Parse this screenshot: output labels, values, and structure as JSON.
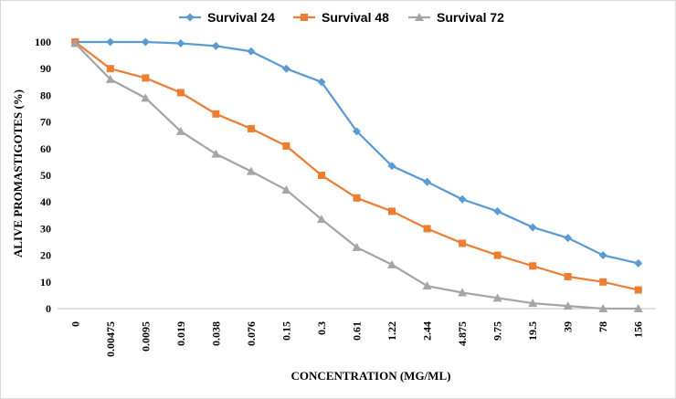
{
  "chart_data": {
    "type": "line",
    "title": "",
    "xlabel": "CONCENTRATION  (MG/ML)",
    "ylabel": "ALIVE PROMASTIGOTES (%)",
    "ylim": [
      0,
      100
    ],
    "yticks": [
      0,
      10,
      20,
      30,
      40,
      50,
      60,
      70,
      80,
      90,
      100
    ],
    "categories": [
      "0",
      "0.00475",
      "0.0095",
      "0.019",
      "0.038",
      "0.076",
      "0.15",
      "0.3",
      "0.61",
      "1.22",
      "2.44",
      "4.875",
      "9.75",
      "19.5",
      "39",
      "78",
      "156"
    ],
    "grid": false,
    "legend_position": "top",
    "series": [
      {
        "name": "Survival 24",
        "color": "#5b9bd5",
        "marker": "diamond",
        "values": [
          100,
          100,
          100,
          99.5,
          98.5,
          96.5,
          90,
          85,
          66.5,
          53.5,
          47.5,
          41,
          36.5,
          30.5,
          26.5,
          20,
          17
        ]
      },
      {
        "name": "Survival 48",
        "color": "#ed7d31",
        "marker": "square",
        "values": [
          100,
          90,
          86.5,
          81,
          73,
          67.5,
          61,
          50,
          41.5,
          36.5,
          30,
          24.5,
          20,
          16,
          12,
          10,
          7
        ]
      },
      {
        "name": "Survival 72",
        "color": "#a5a5a5",
        "marker": "triangle",
        "values": [
          99.5,
          86,
          79,
          66.5,
          58,
          51.5,
          44.5,
          33.5,
          23,
          16.5,
          8.5,
          6,
          4,
          2,
          1,
          0,
          0
        ]
      }
    ]
  }
}
